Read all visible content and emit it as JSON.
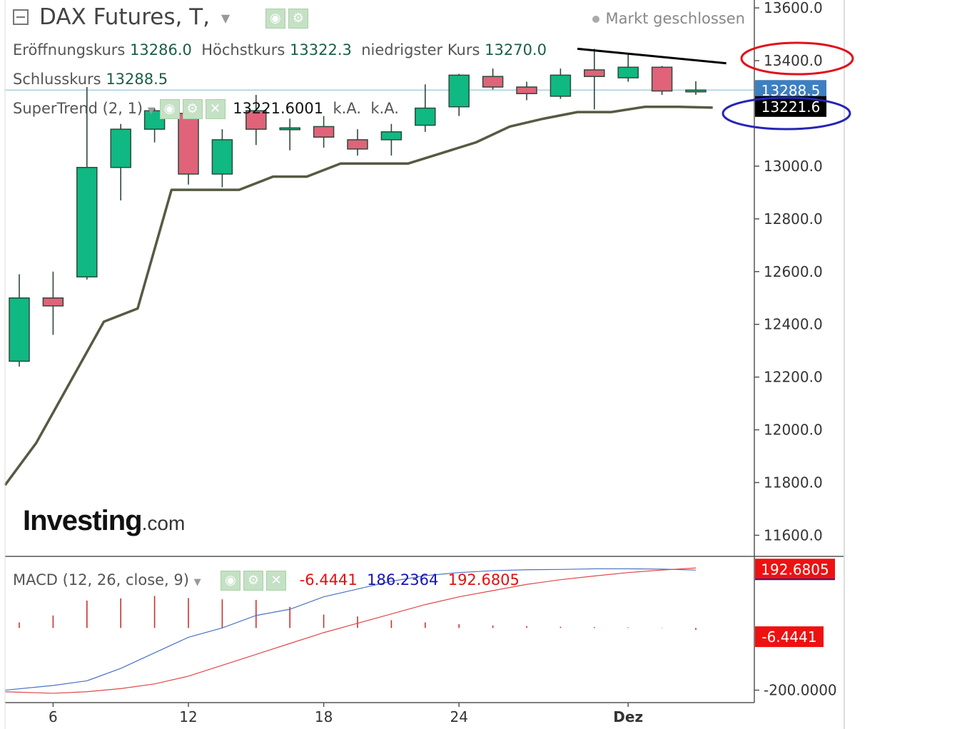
{
  "header": {
    "title": "DAX Futures, T,",
    "status": "Markt geschlossen",
    "open_label": "Eröffnungskurs",
    "open_value": "13286.0",
    "high_label": "Höchstkurs",
    "high_value": "13322.3",
    "low_label": "niedrigster Kurs",
    "low_value": "13270.0",
    "close_label": "Schlusskurs",
    "close_value": "13288.5"
  },
  "indicators": {
    "supertrend_label": "SuperTrend (2, 1)",
    "supertrend_value": "13221.6001",
    "supertrend_extra1": "k.A.",
    "supertrend_extra2": "k.A.",
    "macd_label": "MACD (12, 26, close, 9)",
    "macd_hist_value": "-6.4441",
    "macd_value": "186.2364",
    "macd_signal_value": "192.6805"
  },
  "logo": {
    "main": "Investing",
    "suffix": ".com"
  },
  "colors": {
    "up": "#10b882",
    "down": "#e0637a",
    "supertrend": "#565a42",
    "macd_line": "#4a72c4",
    "signal_line": "#e04848",
    "histogram": "#cc3030",
    "price_tag": "#3d7fc1",
    "annotation_red": "#e0121b",
    "annotation_blue": "#2525b5"
  },
  "chart_data": {
    "type": "candlestick",
    "y_axis": {
      "ylim": [
        11520,
        13630
      ],
      "ticks": [
        "13600.0",
        "13400.0",
        "13000.0",
        "12800.0",
        "12600.0",
        "12400.0",
        "12200.0",
        "12000.0",
        "11800.0",
        "11600.0"
      ],
      "tick_values": [
        13600,
        13400,
        13000,
        12800,
        12600,
        12400,
        12200,
        12000,
        11800,
        11600
      ]
    },
    "x_axis": {
      "tick_labels": [
        "6",
        "12",
        "18",
        "24",
        "Dez"
      ],
      "tick_bar_index": [
        1,
        5,
        9,
        13,
        18
      ]
    },
    "candles": [
      {
        "o": 12260,
        "h": 12590,
        "l": 12240,
        "c": 12500
      },
      {
        "o": 12500,
        "h": 12600,
        "l": 12360,
        "c": 12470
      },
      {
        "o": 12580,
        "h": 13300,
        "l": 12570,
        "c": 12995
      },
      {
        "o": 12995,
        "h": 13160,
        "l": 12870,
        "c": 13140
      },
      {
        "o": 13140,
        "h": 13220,
        "l": 13090,
        "c": 13210
      },
      {
        "o": 13200,
        "h": 13230,
        "l": 12930,
        "c": 12970
      },
      {
        "o": 12970,
        "h": 13140,
        "l": 12920,
        "c": 13100
      },
      {
        "o": 13210,
        "h": 13270,
        "l": 13080,
        "c": 13140
      },
      {
        "o": 13140,
        "h": 13180,
        "l": 13060,
        "c": 13145
      },
      {
        "o": 13150,
        "h": 13190,
        "l": 13070,
        "c": 13110
      },
      {
        "o": 13100,
        "h": 13140,
        "l": 13040,
        "c": 13065
      },
      {
        "o": 13100,
        "h": 13160,
        "l": 13040,
        "c": 13130
      },
      {
        "o": 13155,
        "h": 13310,
        "l": 13130,
        "c": 13220
      },
      {
        "o": 13225,
        "h": 13350,
        "l": 13190,
        "c": 13345
      },
      {
        "o": 13340,
        "h": 13370,
        "l": 13290,
        "c": 13300
      },
      {
        "o": 13300,
        "h": 13320,
        "l": 13250,
        "c": 13275
      },
      {
        "o": 13265,
        "h": 13370,
        "l": 13255,
        "c": 13345
      },
      {
        "o": 13365,
        "h": 13445,
        "l": 13215,
        "c": 13340
      },
      {
        "o": 13335,
        "h": 13430,
        "l": 13320,
        "c": 13375
      },
      {
        "o": 13375,
        "h": 13380,
        "l": 13270,
        "c": 13285
      },
      {
        "o": 13286,
        "h": 13322,
        "l": 13270,
        "c": 13288.5
      }
    ],
    "supertrend": [
      11790,
      11950,
      12180,
      12410,
      12460,
      12910,
      12910,
      12910,
      12960,
      12960,
      13010,
      13010,
      13010,
      13050,
      13090,
      13150,
      13180,
      13205,
      13205,
      13225,
      13225,
      13222
    ],
    "supertrend_x_offset": -0.5,
    "trendline": {
      "from": [
        16.5,
        13445
      ],
      "to": [
        20.9,
        13390
      ]
    },
    "last_close_label": "13288.5",
    "supertrend_label": "13221.6",
    "macd": {
      "ylim": [
        -240,
        230
      ],
      "tick_label": "-200.0000",
      "tick_value": -200,
      "macd_line": [
        -200,
        -185,
        -170,
        -130,
        -80,
        -30,
        0,
        40,
        60,
        100,
        125,
        150,
        168,
        178,
        184,
        187,
        188,
        190,
        190,
        189,
        186
      ],
      "signal_line": [
        -205,
        -210,
        -205,
        -195,
        -180,
        -155,
        -120,
        -85,
        -50,
        -15,
        15,
        45,
        75,
        100,
        120,
        140,
        155,
        167,
        178,
        186,
        192.7
      ],
      "histogram": [
        18,
        40,
        88,
        95,
        103,
        96,
        92,
        90,
        68,
        43,
        37,
        25,
        18,
        12,
        8,
        6,
        4,
        3,
        2,
        1,
        -6.4
      ],
      "macd_tag": "192.6805",
      "hist_tag": "-6.4441"
    }
  }
}
